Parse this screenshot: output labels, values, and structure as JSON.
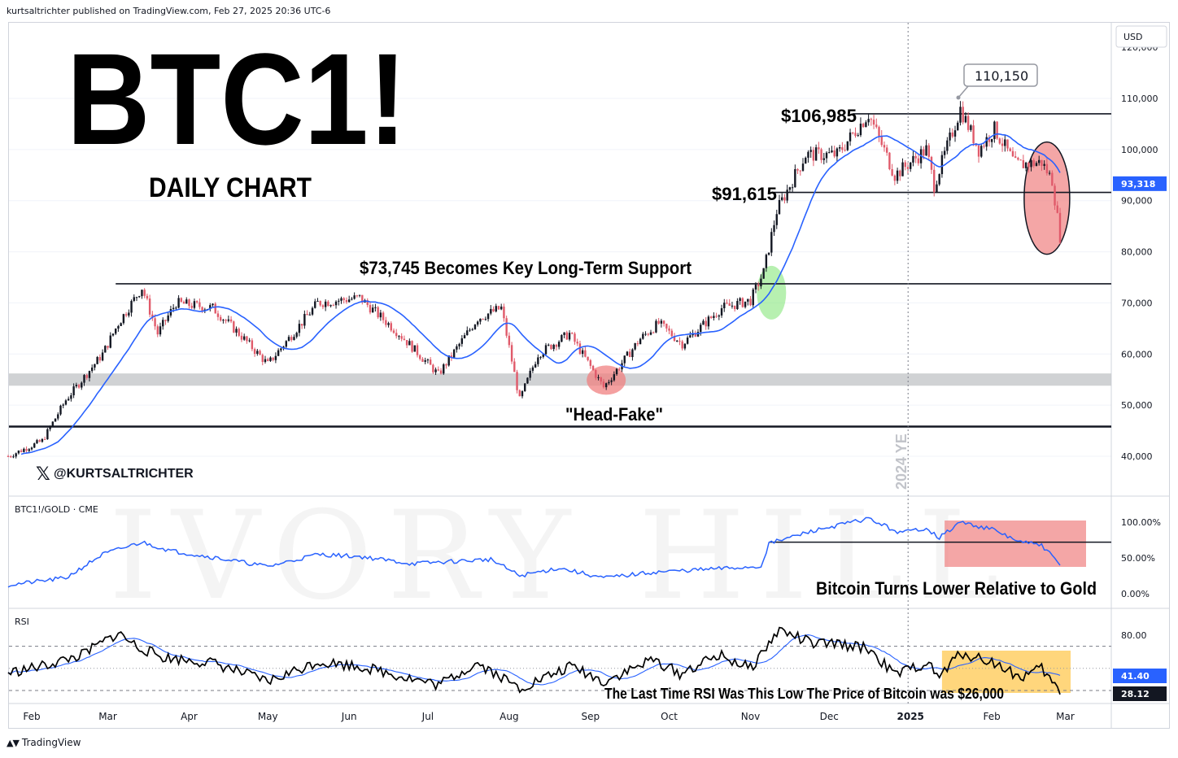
{
  "header": {
    "published": "kurtsaltrichter published on TradingView.com, Feb 27, 2025 20:36 UTC-6"
  },
  "footer": {
    "brand": "TradingView"
  },
  "currency_label": "USD",
  "colors": {
    "up": "#131722",
    "down": "#e05a6a",
    "ma": "#2962ff",
    "ratio": "#2962ff",
    "rsi": "#000000",
    "rsi_ma": "#2962ff",
    "support_band": "#c8cacd",
    "green_highlight": "#7be36f",
    "red_highlight": "#f08080",
    "rsi_box": "#ffc850"
  },
  "annotations": {
    "title": "BTC1!",
    "subtitle": "DAILY CHART",
    "support_text": "$73,745 Becomes Key Long-Term Support",
    "head_fake": "\"Head-Fake\"",
    "level_106": "$106,985",
    "level_91": "$91,615",
    "peak_label": "110,150",
    "handle": "@KURTSALTRICHTER",
    "ye_label": "2024 YE",
    "ratio_note": "Bitcoin Turns Lower Relative to Gold",
    "rsi_note": "The Last Time RSI Was This Low The Price of Bitcoin was $26,000",
    "watermark": "IVORY HILL"
  },
  "chart_data": [
    {
      "type": "candlestick",
      "title": "BTC1!",
      "subtitle": "DAILY CHART",
      "ylim": [
        36000,
        124000
      ],
      "y_ticks": [
        "40,000",
        "50,000",
        "60,000",
        "70,000",
        "80,000",
        "90,000",
        "100,000",
        "110,000",
        "120,000"
      ],
      "x_ticks": [
        "Feb",
        "Mar",
        "Apr",
        "May",
        "Jun",
        "Jul",
        "Aug",
        "Sep",
        "Oct",
        "Nov",
        "Dec",
        "2025",
        "Feb",
        "Mar"
      ],
      "price_keypoints": [
        [
          "2024-01-23",
          40000
        ],
        [
          "2024-02-05",
          43000
        ],
        [
          "2024-02-14",
          51000
        ],
        [
          "2024-02-28",
          60000
        ],
        [
          "2024-03-05",
          66000
        ],
        [
          "2024-03-14",
          73000
        ],
        [
          "2024-03-20",
          64000
        ],
        [
          "2024-03-27",
          70000
        ],
        [
          "2024-04-10",
          69000
        ],
        [
          "2024-04-20",
          64000
        ],
        [
          "2024-05-01",
          58000
        ],
        [
          "2024-05-20",
          70000
        ],
        [
          "2024-06-05",
          71000
        ],
        [
          "2024-06-20",
          64000
        ],
        [
          "2024-07-05",
          56000
        ],
        [
          "2024-07-20",
          67000
        ],
        [
          "2024-07-29",
          69000
        ],
        [
          "2024-08-05",
          51000
        ],
        [
          "2024-08-12",
          60000
        ],
        [
          "2024-08-24",
          64000
        ],
        [
          "2024-09-06",
          53500
        ],
        [
          "2024-09-20",
          63000
        ],
        [
          "2024-09-27",
          66000
        ],
        [
          "2024-10-06",
          62000
        ],
        [
          "2024-10-21",
          69000
        ],
        [
          "2024-11-01",
          70500
        ],
        [
          "2024-11-06",
          76000
        ],
        [
          "2024-11-11",
          88000
        ],
        [
          "2024-11-22",
          99000
        ],
        [
          "2024-12-04",
          99000
        ],
        [
          "2024-12-16",
          106985
        ],
        [
          "2024-12-26",
          95000
        ],
        [
          "2025-01-07",
          100000
        ],
        [
          "2025-01-10",
          93000
        ],
        [
          "2025-01-20",
          108000
        ],
        [
          "2025-01-27",
          100000
        ],
        [
          "2025-02-02",
          104000
        ],
        [
          "2025-02-10",
          97000
        ],
        [
          "2025-02-20",
          97500
        ],
        [
          "2025-02-24",
          94000
        ],
        [
          "2025-02-27",
          83000
        ]
      ],
      "moving_average_last": "93,318",
      "price_badge": "93,318",
      "levels": [
        {
          "label": "$106,985",
          "value": 106985
        },
        {
          "label": "$91,615",
          "value": 91615
        },
        {
          "label": "$73,745 Becomes Key Long-Term Support",
          "value": 73745
        },
        {
          "label": "",
          "value": 45800
        }
      ],
      "support_band": [
        53800,
        56200
      ],
      "peak": {
        "label": "110,150",
        "value": 110150,
        "date": "2025-01-20"
      },
      "notes": [
        "\"Head-Fake\"",
        "2024 YE"
      ]
    },
    {
      "type": "line",
      "title": "BTC1!/GOLD · CME",
      "ylim": [
        -10,
        120
      ],
      "y_ticks": [
        "0.00%",
        "50.00%",
        "100.00%"
      ],
      "keypoints": [
        [
          "2024-01-23",
          12
        ],
        [
          "2024-02-14",
          22
        ],
        [
          "2024-02-28",
          55
        ],
        [
          "2024-03-14",
          72
        ],
        [
          "2024-03-25",
          60
        ],
        [
          "2024-04-15",
          48
        ],
        [
          "2024-05-01",
          38
        ],
        [
          "2024-05-20",
          55
        ],
        [
          "2024-06-05",
          52
        ],
        [
          "2024-06-25",
          42
        ],
        [
          "2024-07-25",
          48
        ],
        [
          "2024-08-05",
          25
        ],
        [
          "2024-08-20",
          36
        ],
        [
          "2024-09-06",
          22
        ],
        [
          "2024-09-25",
          30
        ],
        [
          "2024-10-20",
          35
        ],
        [
          "2024-11-05",
          38
        ],
        [
          "2024-11-08",
          70
        ],
        [
          "2024-11-25",
          88
        ],
        [
          "2024-12-16",
          105
        ],
        [
          "2024-12-28",
          85
        ],
        [
          "2025-01-07",
          92
        ],
        [
          "2025-01-12",
          78
        ],
        [
          "2025-01-20",
          100
        ],
        [
          "2025-02-01",
          90
        ],
        [
          "2025-02-12",
          72
        ],
        [
          "2025-02-20",
          68
        ],
        [
          "2025-02-27",
          40
        ]
      ],
      "reference_level": 72,
      "note": "Bitcoin Turns Lower Relative to Gold"
    },
    {
      "type": "line",
      "title": "RSI",
      "ylim": [
        10,
        95
      ],
      "y_ticks": [
        "80.00"
      ],
      "bands": [
        30,
        70
      ],
      "last_rsi": "28.12",
      "last_rsi_ma": "41.40",
      "keypoints": [
        [
          "2024-01-23",
          46
        ],
        [
          "2024-02-05",
          52
        ],
        [
          "2024-02-20",
          62
        ],
        [
          "2024-03-05",
          82
        ],
        [
          "2024-03-12",
          70
        ],
        [
          "2024-03-22",
          60
        ],
        [
          "2024-04-10",
          55
        ],
        [
          "2024-05-01",
          38
        ],
        [
          "2024-05-20",
          56
        ],
        [
          "2024-06-05",
          52
        ],
        [
          "2024-07-05",
          35
        ],
        [
          "2024-07-20",
          55
        ],
        [
          "2024-08-05",
          32
        ],
        [
          "2024-08-25",
          52
        ],
        [
          "2024-09-06",
          38
        ],
        [
          "2024-09-25",
          58
        ],
        [
          "2024-10-05",
          45
        ],
        [
          "2024-10-20",
          62
        ],
        [
          "2024-11-01",
          50
        ],
        [
          "2024-11-12",
          85
        ],
        [
          "2024-11-25",
          72
        ],
        [
          "2024-12-05",
          72
        ],
        [
          "2024-12-16",
          68
        ],
        [
          "2024-12-26",
          44
        ],
        [
          "2025-01-07",
          55
        ],
        [
          "2025-01-12",
          42
        ],
        [
          "2025-01-20",
          64
        ],
        [
          "2025-02-01",
          56
        ],
        [
          "2025-02-12",
          42
        ],
        [
          "2025-02-20",
          50
        ],
        [
          "2025-02-27",
          28
        ]
      ],
      "note": "The Last Time RSI Was This Low The Price of Bitcoin was $26,000"
    }
  ]
}
